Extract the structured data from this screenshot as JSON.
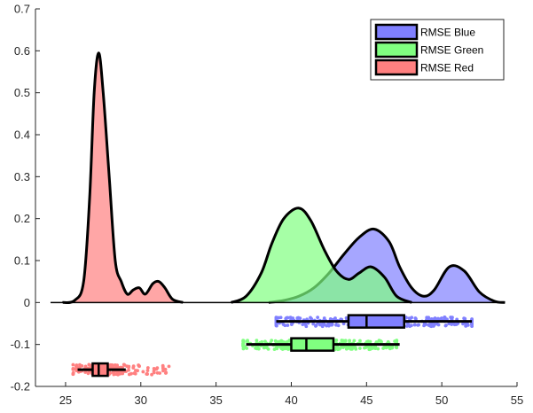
{
  "chart_data": {
    "type": "raincloud",
    "xlim": [
      23,
      55
    ],
    "ylim": [
      -0.2,
      0.7
    ],
    "xticks": [
      25,
      30,
      35,
      40,
      45,
      50,
      55
    ],
    "yticks": [
      -0.2,
      -0.1,
      0,
      0.1,
      0.2,
      0.3,
      0.4,
      0.5,
      0.6,
      0.7
    ],
    "legend_position": "top-right",
    "grid": false,
    "series": [
      {
        "name": "RMSE Blue",
        "color": "#8080FF",
        "density": {
          "x": [
            38.5,
            39.5,
            40.5,
            41.5,
            42.5,
            43.5,
            44.5,
            45.5,
            46.5,
            47.2,
            48,
            48.8,
            49.5,
            50.5,
            51.5,
            52.5,
            53.5,
            54.2
          ],
          "y": [
            0.0,
            0.005,
            0.015,
            0.035,
            0.07,
            0.115,
            0.155,
            0.175,
            0.145,
            0.085,
            0.035,
            0.015,
            0.03,
            0.085,
            0.075,
            0.025,
            0.003,
            0.0
          ]
        },
        "box": {
          "y": -0.045,
          "whisker_low": 39,
          "q1": 43.8,
          "median": 45,
          "q3": 47.5,
          "whisker_high": 52
        },
        "jitter": {
          "x_range": [
            39,
            52
          ],
          "y_range": [
            -0.035,
            -0.057
          ],
          "count": 300
        }
      },
      {
        "name": "RMSE Green",
        "color": "#80FF80",
        "density": {
          "x": [
            36,
            37,
            38,
            38.7,
            39.5,
            40.5,
            41.3,
            42.2,
            43,
            43.8,
            44.5,
            45.3,
            46.2,
            47,
            48
          ],
          "y": [
            0.0,
            0.015,
            0.07,
            0.14,
            0.2,
            0.225,
            0.195,
            0.125,
            0.075,
            0.055,
            0.07,
            0.085,
            0.06,
            0.015,
            0.0
          ]
        },
        "box": {
          "y": -0.1,
          "whisker_low": 37,
          "q1": 40,
          "median": 41,
          "q3": 42.8,
          "whisker_high": 47.2
        },
        "jitter": {
          "x_range": [
            36.8,
            47
          ],
          "y_range": [
            -0.09,
            -0.112
          ],
          "count": 300
        }
      },
      {
        "name": "RMSE Red",
        "color": "#FF8080",
        "density": {
          "x": [
            24.8,
            25.6,
            26.2,
            26.6,
            26.9,
            27.2,
            27.5,
            27.9,
            28.3,
            28.7,
            29.1,
            29.5,
            29.9,
            30.3,
            30.8,
            31.2,
            31.6,
            32.1,
            32.8
          ],
          "y": [
            0.0,
            0.005,
            0.05,
            0.25,
            0.5,
            0.595,
            0.5,
            0.3,
            0.1,
            0.05,
            0.02,
            0.03,
            0.035,
            0.02,
            0.045,
            0.05,
            0.035,
            0.008,
            0.0
          ]
        },
        "box": {
          "y": -0.16,
          "whisker_low": 25.8,
          "q1": 26.8,
          "median": 27.2,
          "q3": 27.8,
          "whisker_high": 29
        },
        "jitter": {
          "x_range": [
            25.5,
            32
          ],
          "y_range": [
            -0.148,
            -0.172
          ],
          "count": 200
        }
      }
    ]
  }
}
